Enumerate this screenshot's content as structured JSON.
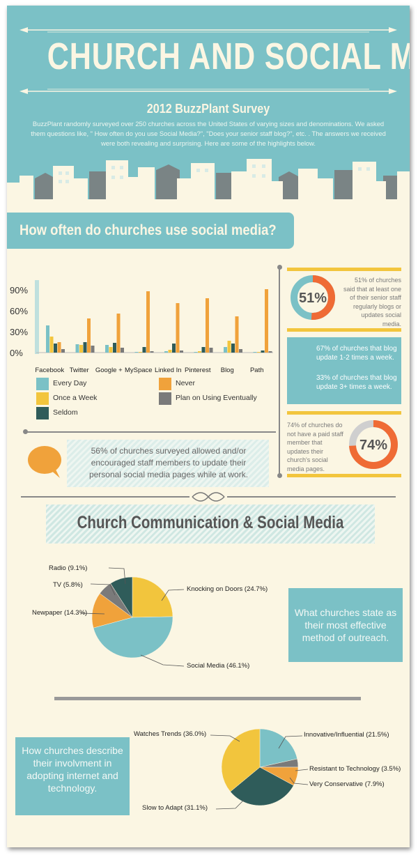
{
  "header": {
    "title": "CHURCH AND SOCIAL MEDIA",
    "subtitle": "2012 BuzzPlant Survey",
    "intro": "BuzzPlant randomly surveyed over 250 churches across the United States of varying sizes and denominations. We asked them questions like, \" How often do you use Social Media?\", \"Does your senior staff blog?\", etc. . The answers we received were both revealing and surprising. Here are some of the highlights below."
  },
  "section1": {
    "heading": "How often do churches use social media?"
  },
  "colors": {
    "teal": "#7bc1c6",
    "yellow": "#f2c53d",
    "dark_teal": "#2f5c5a",
    "orange": "#f0a23b",
    "gray": "#7a7a7a",
    "red_orange": "#ef6b35",
    "cream": "#fbf6e3"
  },
  "chart_data": [
    {
      "type": "bar",
      "categories": [
        "Facebook",
        "Twitter",
        "Google +",
        "MySpace",
        "Linked In",
        "Pinterest",
        "Blog",
        "Path"
      ],
      "yticks": [
        "90%",
        "60%",
        "30%",
        "0%"
      ],
      "ylim": [
        0,
        100
      ],
      "series": [
        {
          "name": "Every Day",
          "color": "#7bc1c6",
          "values": [
            39,
            12,
            11,
            1,
            2,
            1,
            8,
            1
          ]
        },
        {
          "name": "Once a Week",
          "color": "#f2c53d",
          "values": [
            23,
            11,
            8,
            1,
            4,
            2,
            17,
            1
          ]
        },
        {
          "name": "Seldom",
          "color": "#2f5c5a",
          "values": [
            13,
            15,
            14,
            8,
            13,
            8,
            13,
            3
          ]
        },
        {
          "name": "Never",
          "color": "#f0a23b",
          "values": [
            15,
            49,
            56,
            88,
            71,
            78,
            52,
            91
          ]
        },
        {
          "name": "Plan on Using Eventually",
          "color": "#7a7a7a",
          "values": [
            5,
            10,
            7,
            2,
            3,
            7,
            5,
            2
          ]
        }
      ],
      "legend_order": [
        "Every Day",
        "Never",
        "Once a Week",
        "Plan on Using Eventually",
        "Seldom"
      ],
      "legend_placement": "bottom"
    },
    {
      "type": "pie",
      "labels": [
        "Knocking on Doors (24.7%)",
        "Social Media (46.1%)",
        "Newpaper (14.3%)",
        "TV (5.8%)",
        "Radio (9.1%)"
      ],
      "values": [
        24.7,
        46.1,
        14.3,
        5.8,
        9.1
      ],
      "colors": [
        "#f2c53d",
        "#7bc1c6",
        "#f0a23b",
        "#7a7a7a",
        "#2f5c5a"
      ]
    },
    {
      "type": "pie",
      "labels": [
        "Innovative/Influential (21.5%)",
        "Resistant to Technology (3.5%)",
        "Very Conservative (7.9%)",
        "Slow to Adapt (31.1%)",
        "Watches Trends (36.0%)"
      ],
      "values": [
        21.5,
        3.5,
        7.9,
        31.1,
        36.0
      ],
      "colors": [
        "#7bc1c6",
        "#7a7a7a",
        "#f0a23b",
        "#2f5c5a",
        "#f2c53d"
      ]
    }
  ],
  "stats": {
    "blog_pct": "51%",
    "blog_pct_value": 51,
    "blog_text": "51% of churches said that at least one of their senior staff regularly blogs or updates social media.",
    "weekly_text_1": "67% of churches that blog update 1-2 times a week.",
    "weekly_text_2": "33% of churches that blog update 3+ times a week.",
    "paid_text": "74% of churches do not have a paid staff member that updates their church's social media pages.",
    "paid_pct": "74%",
    "paid_pct_value": 74,
    "quote": "56% of churches surveyed allowed and/or encouraged staff members to update their personal social media pages while at work."
  },
  "section2": {
    "heading": "Church Communication & Social Media",
    "callout_outreach": "What churches state as their most effective method of outreach.",
    "callout_adoption": "How churches describe their involvment in adopting internet and technology."
  }
}
